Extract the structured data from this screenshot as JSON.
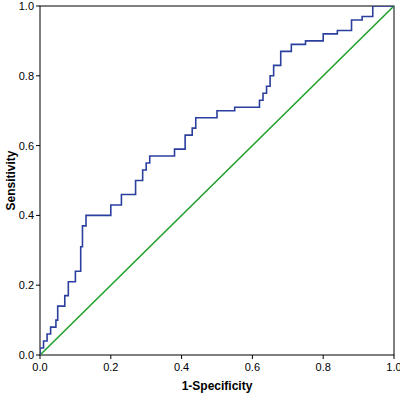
{
  "chart_data": {
    "type": "line",
    "x_label": "1-Specificity",
    "y_label": "Sensitivity",
    "xlim": [
      0,
      1
    ],
    "ylim": [
      0,
      1
    ],
    "xticks": [
      {
        "value": 0,
        "label": "0.0"
      },
      0.2,
      0.4,
      0.6,
      0.8,
      {
        "value": 1,
        "label": "1.0"
      }
    ],
    "yticks": [
      {
        "value": 0,
        "label": "0.0"
      },
      0.2,
      0.4,
      0.6,
      0.8,
      {
        "value": 1,
        "label": "1.0"
      }
    ],
    "grid": false,
    "series": [
      {
        "color": "#2b3f9e",
        "line_style": "solid",
        "x": [
          0,
          0,
          0.01,
          0.01,
          0.02,
          0.02,
          0.03,
          0.03,
          0.045,
          0.045,
          0.05,
          0.05,
          0.07,
          0.07,
          0.08,
          0.08,
          0.1,
          0.1,
          0.115,
          0.115,
          0.12,
          0.12,
          0.13,
          0.13,
          0.2,
          0.2,
          0.23,
          0.23,
          0.27,
          0.27,
          0.29,
          0.29,
          0.3,
          0.3,
          0.31,
          0.31,
          0.38,
          0.38,
          0.41,
          0.41,
          0.43,
          0.43,
          0.44,
          0.44,
          0.5,
          0.5,
          0.55,
          0.55,
          0.62,
          0.62,
          0.63,
          0.63,
          0.64,
          0.64,
          0.65,
          0.65,
          0.66,
          0.66,
          0.68,
          0.68,
          0.71,
          0.71,
          0.75,
          0.75,
          0.8,
          0.8,
          0.84,
          0.84,
          0.88,
          0.88,
          0.91,
          0.91,
          0.94,
          0.94,
          1.0
        ],
        "values": [
          0,
          0.02,
          0.02,
          0.04,
          0.04,
          0.06,
          0.06,
          0.08,
          0.08,
          0.1,
          0.1,
          0.14,
          0.14,
          0.17,
          0.17,
          0.21,
          0.21,
          0.24,
          0.24,
          0.31,
          0.31,
          0.37,
          0.37,
          0.4,
          0.4,
          0.43,
          0.43,
          0.46,
          0.46,
          0.5,
          0.5,
          0.53,
          0.53,
          0.55,
          0.55,
          0.57,
          0.57,
          0.59,
          0.59,
          0.63,
          0.63,
          0.65,
          0.65,
          0.68,
          0.68,
          0.7,
          0.7,
          0.71,
          0.71,
          0.73,
          0.73,
          0.75,
          0.75,
          0.77,
          0.77,
          0.8,
          0.8,
          0.83,
          0.83,
          0.87,
          0.87,
          0.89,
          0.89,
          0.9,
          0.9,
          0.92,
          0.92,
          0.93,
          0.93,
          0.96,
          0.96,
          0.97,
          0.97,
          1.0,
          1.0
        ]
      },
      {
        "color": "#22a02c",
        "line_style": "solid",
        "x": [
          0,
          1
        ],
        "values": [
          0,
          1
        ]
      }
    ]
  }
}
